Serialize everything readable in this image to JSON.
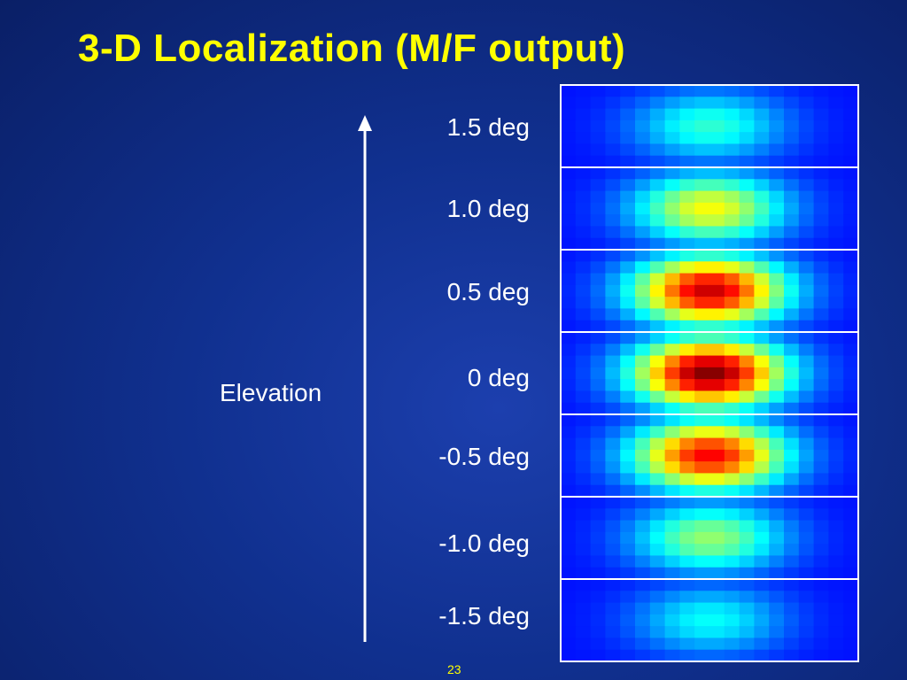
{
  "title": "3-D Localization (M/F output)",
  "slide_number": "23",
  "chart_data": {
    "type": "heatmap",
    "title": "3-D Localization (M/F output)",
    "axis_label": "Elevation",
    "panels": [
      {
        "label": "1.5 deg",
        "peak": 0.42
      },
      {
        "label": "1.0 deg",
        "peak": 0.62
      },
      {
        "label": "0.5 deg",
        "peak": 0.93
      },
      {
        "label": "0 deg",
        "peak": 1.0
      },
      {
        "label": "-0.5 deg",
        "peak": 0.88
      },
      {
        "label": "-1.0 deg",
        "peak": 0.52
      },
      {
        "label": "-1.5 deg",
        "peak": 0.38
      }
    ],
    "colormap": "jet",
    "border_color": "#ffffff",
    "axis_color": "#ffffff"
  }
}
